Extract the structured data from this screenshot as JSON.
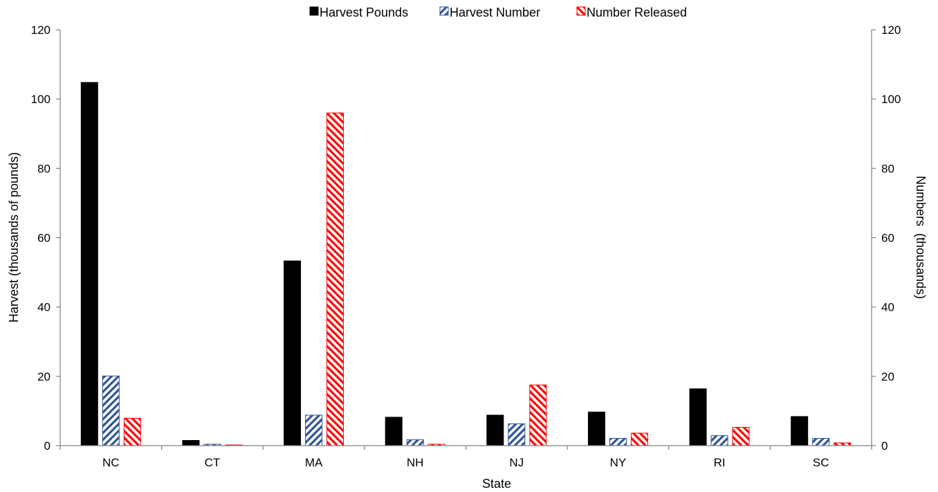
{
  "chart_data": {
    "type": "bar",
    "categories": [
      "NC",
      "CT",
      "MA",
      "NH",
      "NJ",
      "NY",
      "RI",
      "SC"
    ],
    "series": [
      {
        "name": "Harvest Pounds",
        "axis": "left",
        "pattern": "solid",
        "color": "#000000",
        "values": [
          104.8,
          1.5,
          53.3,
          8.2,
          8.8,
          9.7,
          16.4,
          8.4
        ]
      },
      {
        "name": "Harvest Number",
        "axis": "right",
        "pattern": "hatch-forward",
        "color": "#2F5496",
        "values": [
          20.1,
          0.4,
          8.8,
          1.7,
          6.3,
          2.1,
          2.9,
          2.1
        ]
      },
      {
        "name": "Number Released",
        "axis": "right",
        "pattern": "hatch-backward",
        "color": "#FF0000",
        "values": [
          7.9,
          0.2,
          96.0,
          0.4,
          17.5,
          3.6,
          5.3,
          0.8
        ]
      }
    ],
    "xlabel": "State",
    "ylabel": "Harvest (thousands of pounds)",
    "y2label": "Numbers  (thousands)",
    "ylim": [
      0,
      120
    ],
    "y2lim": [
      0,
      120
    ],
    "yticks": [
      0,
      20,
      40,
      60,
      80,
      100,
      120
    ],
    "grid": false,
    "legend_position": "top-center"
  }
}
